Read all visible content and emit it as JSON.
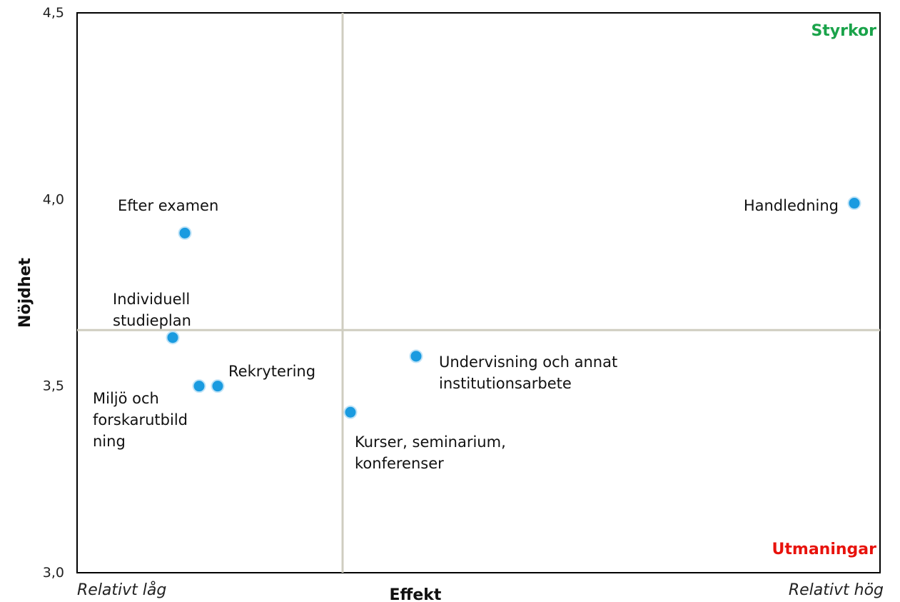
{
  "chart_data": {
    "type": "scatter",
    "xlabel": "Effekt",
    "ylabel": "Nöjdhet",
    "x_low_label": "Relativt låg",
    "x_high_label": "Relativt hög",
    "ylim": [
      3.0,
      4.5
    ],
    "yticks": [
      "3,0",
      "3,5",
      "4,0",
      "4,5"
    ],
    "y_divider": 3.65,
    "corner_labels": {
      "top_right": {
        "text": "Styrkor",
        "color": "#1aa34a"
      },
      "bottom_right": {
        "text": "Utmaningar",
        "color": "#e8120c"
      }
    },
    "point_color": "#1a9be0",
    "points": [
      {
        "label": [
          "Efter examen"
        ],
        "y": 3.91
      },
      {
        "label": [
          "Individuell",
          "studieplan"
        ],
        "y": 3.63
      },
      {
        "label": [
          "Miljö och",
          "forskarutbild",
          "ning"
        ],
        "y": 3.5
      },
      {
        "label": [
          "Rekrytering"
        ],
        "y": 3.5
      },
      {
        "label": [
          "Kurser, seminarium,",
          "konferenser"
        ],
        "y": 3.43
      },
      {
        "label": [
          "Undervisning och annat",
          "institutionsarbete"
        ],
        "y": 3.58
      },
      {
        "label": [
          "Handledning"
        ],
        "y": 3.99
      }
    ]
  }
}
